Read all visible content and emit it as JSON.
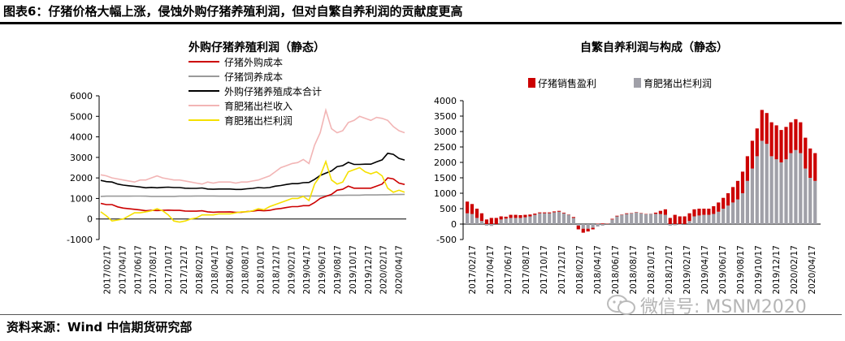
{
  "page": {
    "title": "图表6：仔猪价格大幅上涨，侵蚀外购仔猪养殖利润，但对自繁自养利润的贡献度更高",
    "source": "资料来源：Wind 中信期货研究部",
    "watermark": "微信号: MSNM2020"
  },
  "chart_data": [
    {
      "type": "line",
      "title": "外购仔猪养殖利润（静态）",
      "ylim": [
        -1000,
        6000
      ],
      "yticks": [
        -1000,
        0,
        1000,
        2000,
        3000,
        4000,
        5000,
        6000
      ],
      "xtick_labels": [
        "2017/02/17",
        "2017/04/17",
        "2017/06/17",
        "2017/08/17",
        "2017/10/17",
        "2017/12/17",
        "2018/02/17",
        "2018/04/17",
        "2018/06/17",
        "2018/08/17",
        "2018/10/17",
        "2018/12/17",
        "2019/02/17",
        "2019/04/17",
        "2019/06/17",
        "2019/08/17",
        "2019/10/17",
        "2019/12/17",
        "2020/02/17",
        "2020/04/17"
      ],
      "legend_position": "top-center",
      "series": [
        {
          "name": "仔猪外购成本",
          "color": "#cc0000",
          "values": [
            760,
            700,
            700,
            590,
            530,
            500,
            470,
            440,
            400,
            420,
            410,
            420,
            430,
            420,
            420,
            390,
            380,
            380,
            400,
            350,
            330,
            340,
            340,
            350,
            320,
            330,
            360,
            380,
            420,
            400,
            420,
            480,
            510,
            560,
            600,
            600,
            650,
            650,
            800,
            1000,
            1100,
            1200,
            1400,
            1450,
            1600,
            1500,
            1500,
            1500,
            1500,
            1600,
            1700,
            2000,
            1950,
            1750,
            1680
          ]
        },
        {
          "name": "仔猪饲养成本",
          "color": "#9a9a9a",
          "values": [
            1100,
            1110,
            1110,
            1110,
            1110,
            1110,
            1115,
            1115,
            1110,
            1100,
            1100,
            1100,
            1100,
            1100,
            1110,
            1110,
            1110,
            1120,
            1120,
            1120,
            1120,
            1110,
            1110,
            1110,
            1110,
            1110,
            1110,
            1110,
            1110,
            1110,
            1110,
            1110,
            1110,
            1110,
            1115,
            1115,
            1115,
            1120,
            1120,
            1120,
            1130,
            1140,
            1150,
            1150,
            1160,
            1160,
            1160,
            1170,
            1170,
            1170,
            1180,
            1180,
            1190,
            1190,
            1200
          ]
        },
        {
          "name": "外购仔猪养殖成本合计",
          "color": "#000000",
          "values": [
            1880,
            1820,
            1800,
            1700,
            1650,
            1620,
            1590,
            1560,
            1520,
            1540,
            1520,
            1540,
            1550,
            1530,
            1530,
            1500,
            1490,
            1490,
            1510,
            1460,
            1450,
            1460,
            1460,
            1460,
            1440,
            1440,
            1470,
            1490,
            1530,
            1510,
            1530,
            1600,
            1630,
            1680,
            1720,
            1720,
            1770,
            1780,
            1930,
            2120,
            2230,
            2340,
            2550,
            2600,
            2760,
            2660,
            2660,
            2670,
            2670,
            2780,
            2880,
            3200,
            3150,
            2950,
            2870
          ]
        },
        {
          "name": "育肥猪出栏收入",
          "color": "#f2b5b5",
          "values": [
            2150,
            2100,
            2000,
            1950,
            1900,
            1850,
            1800,
            1900,
            1900,
            2000,
            2100,
            2000,
            1950,
            1900,
            1900,
            1850,
            1800,
            1750,
            1700,
            1800,
            1750,
            1800,
            1800,
            1800,
            1750,
            1800,
            1800,
            1850,
            1900,
            2000,
            2100,
            2300,
            2500,
            2600,
            2700,
            2750,
            2900,
            2700,
            3600,
            4200,
            5300,
            4400,
            4200,
            4300,
            4700,
            4800,
            5000,
            4900,
            4800,
            4950,
            4900,
            4800,
            4500,
            4300,
            4200
          ]
        },
        {
          "name": "育肥猪出栏利润",
          "color": "#f5e000",
          "values": [
            350,
            150,
            -100,
            -50,
            0,
            150,
            300,
            300,
            350,
            400,
            500,
            400,
            200,
            -100,
            -150,
            -100,
            0,
            50,
            200,
            200,
            200,
            250,
            250,
            250,
            300,
            350,
            350,
            400,
            500,
            450,
            600,
            700,
            800,
            900,
            1000,
            1000,
            1100,
            900,
            1700,
            2100,
            2800,
            1900,
            1700,
            1800,
            2300,
            2400,
            2500,
            2300,
            2200,
            2300,
            2100,
            1500,
            1300,
            1400,
            1300
          ]
        }
      ]
    },
    {
      "type": "bar",
      "stacked": true,
      "title": "自繁自养利润与构成（静态）",
      "ylim": [
        -500,
        4000
      ],
      "yticks": [
        -500,
        0,
        500,
        1000,
        1500,
        2000,
        2500,
        3000,
        3500,
        4000
      ],
      "xtick_labels": [
        "2017/02/17",
        "2017/04/17",
        "2017/06/17",
        "2017/08/17",
        "2017/10/17",
        "2017/12/17",
        "2018/02/17",
        "2018/04/17",
        "2018/06/17",
        "2018/08/17",
        "2018/10/17",
        "2018/12/17",
        "2019/02/17",
        "2019/04/17",
        "2019/06/17",
        "2019/08/17",
        "2019/10/17",
        "2019/12/17",
        "2020/02/17",
        "2020/04/17"
      ],
      "legend_position": "top-center",
      "series": [
        {
          "name": "仔猪销售盈利",
          "color": "#cc0000",
          "values": [
            380,
            320,
            300,
            250,
            150,
            200,
            200,
            100,
            60,
            100,
            100,
            90,
            80,
            60,
            40,
            30,
            30,
            30,
            30,
            30,
            20,
            10,
            30,
            -120,
            -130,
            -90,
            -50,
            10,
            20,
            10,
            20,
            20,
            10,
            20,
            10,
            10,
            10,
            10,
            5,
            40,
            100,
            180,
            200,
            300,
            250,
            250,
            250,
            230,
            220,
            200,
            200,
            250,
            300,
            350,
            400,
            500,
            600,
            700,
            800,
            900,
            900,
            1000,
            1000,
            1100,
            1100,
            1050,
            1050,
            1000,
            1000,
            1000,
            1000,
            950,
            900
          ]
        },
        {
          "name": "育肥猪出栏利润",
          "color": "#a0a0a8",
          "values": [
            350,
            330,
            200,
            100,
            -50,
            -60,
            0,
            150,
            180,
            200,
            200,
            200,
            220,
            250,
            300,
            350,
            350,
            350,
            380,
            400,
            350,
            300,
            200,
            -50,
            -150,
            -150,
            -120,
            -80,
            -50,
            0,
            150,
            250,
            300,
            330,
            350,
            380,
            350,
            320,
            330,
            330,
            330,
            300,
            -50,
            -40,
            -20,
            0,
            100,
            250,
            280,
            300,
            300,
            330,
            400,
            500,
            600,
            700,
            800,
            1000,
            1400,
            1800,
            2200,
            2700,
            2600,
            2200,
            2100,
            2000,
            2100,
            2300,
            2400,
            2300,
            1800,
            1500,
            1400
          ]
        }
      ]
    }
  ]
}
